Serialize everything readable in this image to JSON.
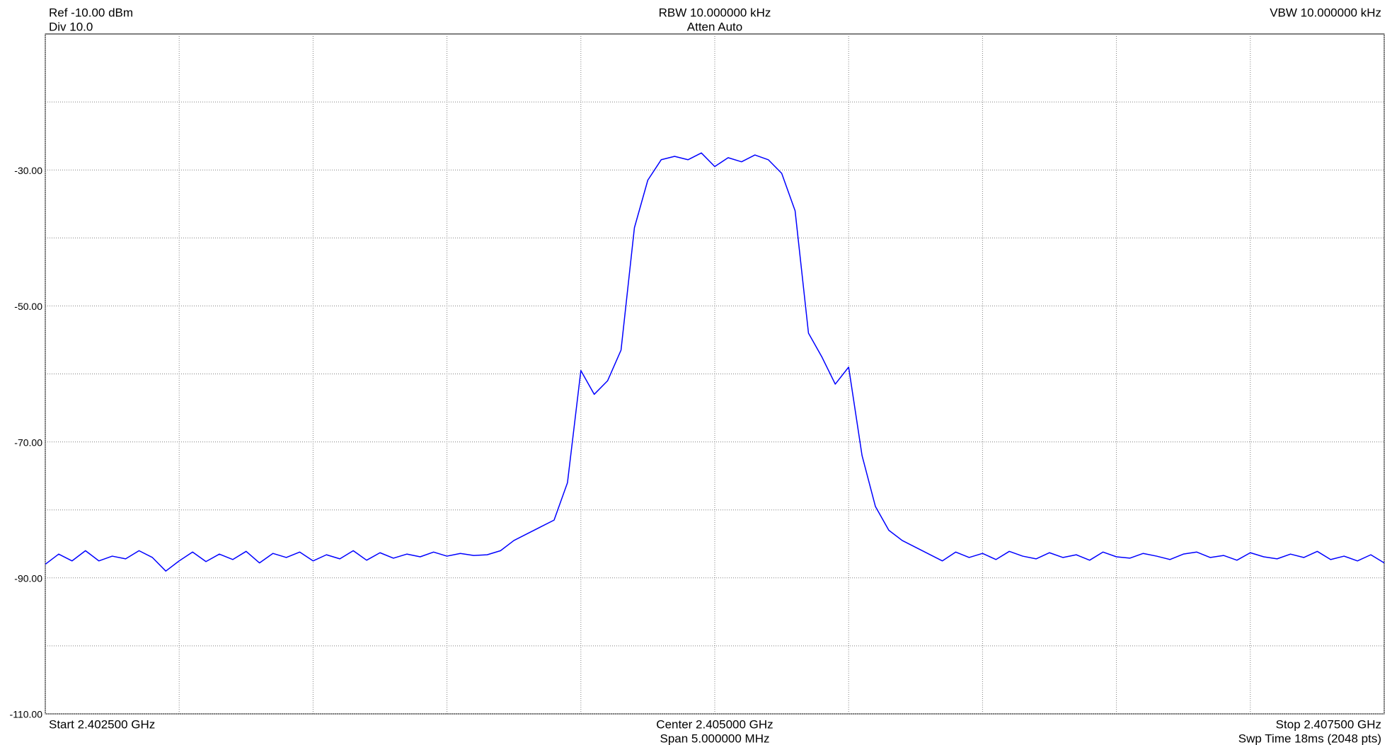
{
  "chart_data": {
    "type": "line",
    "header": {
      "ref": "Ref -10.00 dBm",
      "div": "Div 10.0",
      "rbw": "RBW 10.000000 kHz",
      "atten": "Atten Auto",
      "vbw": "VBW 10.000000 kHz"
    },
    "footer": {
      "start": "Start 2.402500 GHz",
      "center": "Center 2.405000 GHz",
      "span": "Span 5.000000 MHz",
      "stop": "Stop 2.407500 GHz",
      "sweep": "Swp Time 18ms (2048 pts)"
    },
    "xlim": [
      2.4025,
      2.4075
    ],
    "xgrid": [
      2.4025,
      2.403,
      2.4035,
      2.404,
      2.4045,
      2.405,
      2.4055,
      2.406,
      2.4065,
      2.407,
      2.4075
    ],
    "ylim": [
      -110,
      -10
    ],
    "yticks": [
      {
        "value": -30,
        "label": "-30.00"
      },
      {
        "value": -50,
        "label": "-50.00"
      },
      {
        "value": -70,
        "label": "-70.00"
      },
      {
        "value": -90,
        "label": "-90.00"
      },
      {
        "value": -110,
        "label": "-110.00"
      }
    ],
    "minor_yticks": [
      -20,
      -40,
      -60,
      -80,
      -100
    ],
    "grid": true,
    "color": "#0000ff",
    "x": [
      2.4025,
      2.40255,
      2.4026,
      2.40265,
      2.4027,
      2.40275,
      2.4028,
      2.40285,
      2.4029,
      2.40295,
      2.403,
      2.40305,
      2.4031,
      2.40315,
      2.4032,
      2.40325,
      2.4033,
      2.40335,
      2.4034,
      2.40345,
      2.4035,
      2.40355,
      2.4036,
      2.40365,
      2.4037,
      2.40375,
      2.4038,
      2.40385,
      2.4039,
      2.40395,
      2.404,
      2.40405,
      2.4041,
      2.40415,
      2.4042,
      2.40425,
      2.4043,
      2.40435,
      2.4044,
      2.40445,
      2.4045,
      2.40455,
      2.4046,
      2.40465,
      2.4047,
      2.40475,
      2.4048,
      2.40485,
      2.4049,
      2.40495,
      2.405,
      2.40505,
      2.4051,
      2.40515,
      2.4052,
      2.40525,
      2.4053,
      2.40535,
      2.4054,
      2.40545,
      2.4055,
      2.40555,
      2.4056,
      2.40565,
      2.4057,
      2.40575,
      2.4058,
      2.40585,
      2.4059,
      2.40595,
      2.406,
      2.40605,
      2.4061,
      2.40615,
      2.4062,
      2.40625,
      2.4063,
      2.40635,
      2.4064,
      2.40645,
      2.4065,
      2.40655,
      2.4066,
      2.40665,
      2.4067,
      2.40675,
      2.4068,
      2.40685,
      2.4069,
      2.40695,
      2.407,
      2.40705,
      2.4071,
      2.40715,
      2.4072,
      2.40725,
      2.4073,
      2.40735,
      2.4074,
      2.40745,
      2.4075
    ],
    "values": [
      -88,
      -86.5,
      -87.5,
      -86,
      -87.5,
      -86.8,
      -87.2,
      -86,
      -87,
      -89,
      -87.5,
      -86.2,
      -87.6,
      -86.5,
      -87.3,
      -86.1,
      -87.8,
      -86.4,
      -87,
      -86.2,
      -87.5,
      -86.6,
      -87.2,
      -86,
      -87.4,
      -86.3,
      -87.1,
      -86.5,
      -86.9,
      -86.2,
      -86.8,
      -86.4,
      -86.7,
      -86.6,
      -86,
      -84.5,
      -83.5,
      -82.5,
      -81.5,
      -76,
      -59.5,
      -63,
      -61,
      -56.5,
      -38.5,
      -31.5,
      -28.5,
      -28,
      -28.5,
      -27.5,
      -29.5,
      -28.2,
      -28.8,
      -27.8,
      -28.5,
      -30.5,
      -36,
      -54,
      -57.5,
      -61.5,
      -59,
      -72,
      -79.5,
      -83,
      -84.5,
      -85.5,
      -86.5,
      -87.5,
      -86.2,
      -87,
      -86.4,
      -87.3,
      -86.1,
      -86.8,
      -87.2,
      -86.3,
      -87,
      -86.6,
      -87.4,
      -86.2,
      -86.9,
      -87.1,
      -86.4,
      -86.8,
      -87.3,
      -86.5,
      -86.2,
      -87,
      -86.7,
      -87.4,
      -86.3,
      -86.9,
      -87.2,
      -86.5,
      -87,
      -86.1,
      -87.3,
      -86.8,
      -87.5,
      -86.6,
      -87.8
    ]
  }
}
